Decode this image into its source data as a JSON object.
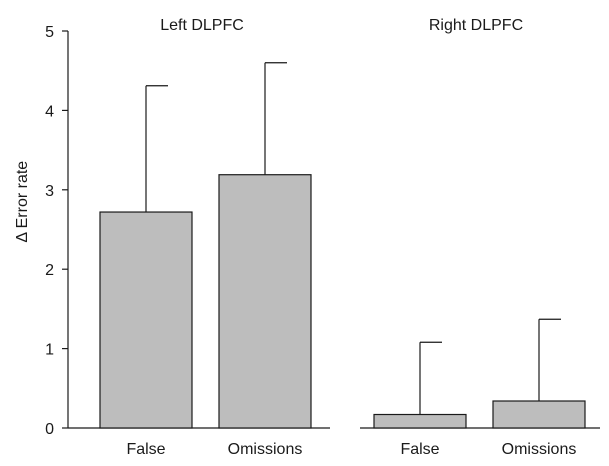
{
  "chart_data": {
    "type": "bar",
    "ylabel": "Δ Error rate",
    "ylim": [
      0,
      5
    ],
    "yticks": [
      0,
      1,
      2,
      3,
      4,
      5
    ],
    "grid": false,
    "groups": [
      {
        "title": "Left DLPFC",
        "categories": [
          "False",
          "Omissions"
        ],
        "values": [
          2.72,
          3.19
        ],
        "errors": [
          1.59,
          1.41
        ]
      },
      {
        "title": "Right DLPFC",
        "categories": [
          "False",
          "Omissions"
        ],
        "values": [
          0.17,
          0.34
        ],
        "errors": [
          0.91,
          1.03
        ]
      }
    ],
    "colors": {
      "bar": "#bdbdbd",
      "stroke": "#1a1a1a"
    }
  }
}
